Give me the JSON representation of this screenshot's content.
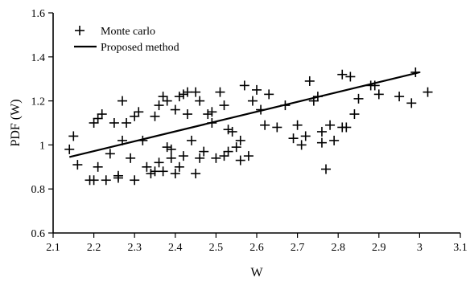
{
  "chart_data": {
    "type": "scatter",
    "xlabel": "W",
    "ylabel": "PDF (W)",
    "xlim": [
      2.1,
      3.1
    ],
    "ylim": [
      0.6,
      1.6
    ],
    "xticks": [
      "2.1",
      "2.2",
      "2.3",
      "2.4",
      "2.5",
      "2.6",
      "2.7",
      "2.8",
      "2.9",
      "3",
      "3.1"
    ],
    "yticks": [
      "0.6",
      "0.8",
      "1",
      "1.2",
      "1.4",
      "1.6"
    ],
    "grid": false,
    "legend_position": "top-left",
    "series": [
      {
        "name": "Monte carlo",
        "style": "plus-marker",
        "color": "#000000",
        "x": [
          2.14,
          2.15,
          2.16,
          2.19,
          2.2,
          2.2,
          2.21,
          2.21,
          2.22,
          2.23,
          2.24,
          2.25,
          2.26,
          2.26,
          2.27,
          2.27,
          2.28,
          2.29,
          2.3,
          2.3,
          2.31,
          2.32,
          2.33,
          2.34,
          2.35,
          2.35,
          2.36,
          2.36,
          2.37,
          2.37,
          2.38,
          2.38,
          2.39,
          2.39,
          2.4,
          2.4,
          2.41,
          2.41,
          2.42,
          2.42,
          2.43,
          2.43,
          2.44,
          2.45,
          2.45,
          2.46,
          2.46,
          2.47,
          2.48,
          2.49,
          2.49,
          2.5,
          2.51,
          2.52,
          2.52,
          2.53,
          2.53,
          2.54,
          2.55,
          2.56,
          2.56,
          2.57,
          2.58,
          2.59,
          2.6,
          2.61,
          2.62,
          2.63,
          2.65,
          2.67,
          2.69,
          2.7,
          2.71,
          2.72,
          2.73,
          2.74,
          2.75,
          2.76,
          2.76,
          2.77,
          2.78,
          2.79,
          2.81,
          2.81,
          2.82,
          2.83,
          2.84,
          2.85,
          2.88,
          2.89,
          2.9,
          2.95,
          2.98,
          2.99,
          3.02
        ],
        "y": [
          0.98,
          1.04,
          0.91,
          0.84,
          1.1,
          0.84,
          1.12,
          0.9,
          1.14,
          0.84,
          0.96,
          1.1,
          0.86,
          0.85,
          1.02,
          1.2,
          1.1,
          0.94,
          1.13,
          0.84,
          1.15,
          1.02,
          0.9,
          0.87,
          0.88,
          1.13,
          0.92,
          1.18,
          0.88,
          1.22,
          1.2,
          0.99,
          0.94,
          0.98,
          1.16,
          0.87,
          1.22,
          0.9,
          0.95,
          1.23,
          1.14,
          1.24,
          1.02,
          0.87,
          1.24,
          0.94,
          1.2,
          0.97,
          1.14,
          1.1,
          1.15,
          0.94,
          1.24,
          0.95,
          1.18,
          1.07,
          0.97,
          1.06,
          0.99,
          0.93,
          1.02,
          1.27,
          0.95,
          1.2,
          1.25,
          1.16,
          1.09,
          1.23,
          1.08,
          1.18,
          1.03,
          1.09,
          1.0,
          1.04,
          1.29,
          1.2,
          1.22,
          1.01,
          1.06,
          0.89,
          1.09,
          1.02,
          1.32,
          1.08,
          1.08,
          1.31,
          1.14,
          1.21,
          1.27,
          1.27,
          1.23,
          1.22,
          1.19,
          1.33,
          1.24
        ]
      },
      {
        "name": "Proposed method",
        "style": "line",
        "color": "#000000",
        "x": [
          2.14,
          3.0
        ],
        "y": [
          0.945,
          1.33
        ]
      }
    ]
  }
}
